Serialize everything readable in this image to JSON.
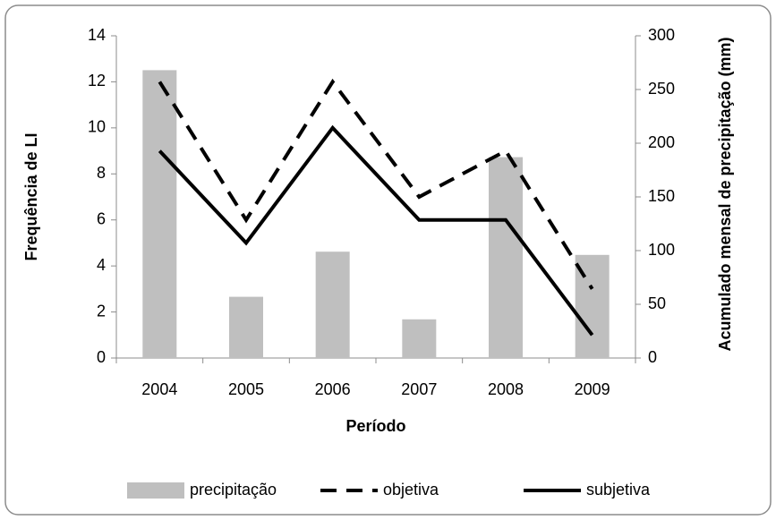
{
  "chart_data": {
    "type": "bar-line",
    "categories": [
      "2004",
      "2005",
      "2006",
      "2007",
      "2008",
      "2009"
    ],
    "series": [
      {
        "name": "precipitação",
        "type": "bar",
        "axis": "y2",
        "color": "#bfbfbf",
        "values": [
          268,
          57,
          99,
          36,
          187,
          96
        ]
      },
      {
        "name": "objetiva",
        "type": "line",
        "dash": true,
        "color": "#000000",
        "values": [
          12,
          6,
          12,
          7,
          9,
          3
        ]
      },
      {
        "name": "subjetiva",
        "type": "line",
        "dash": false,
        "color": "#000000",
        "values": [
          9,
          5,
          10,
          6,
          6,
          1
        ]
      }
    ],
    "x_label": "Período",
    "y_label": "Frequência de LI",
    "y2_label": "Acumulado mensal de precipitação (mm)",
    "ylim": [
      0,
      14
    ],
    "yticks": [
      0,
      2,
      4,
      6,
      8,
      10,
      12,
      14
    ],
    "y2lim": [
      0,
      300
    ],
    "y2ticks": [
      0,
      50,
      100,
      150,
      200,
      250,
      300
    ],
    "grid": false,
    "legend": "bottom"
  }
}
